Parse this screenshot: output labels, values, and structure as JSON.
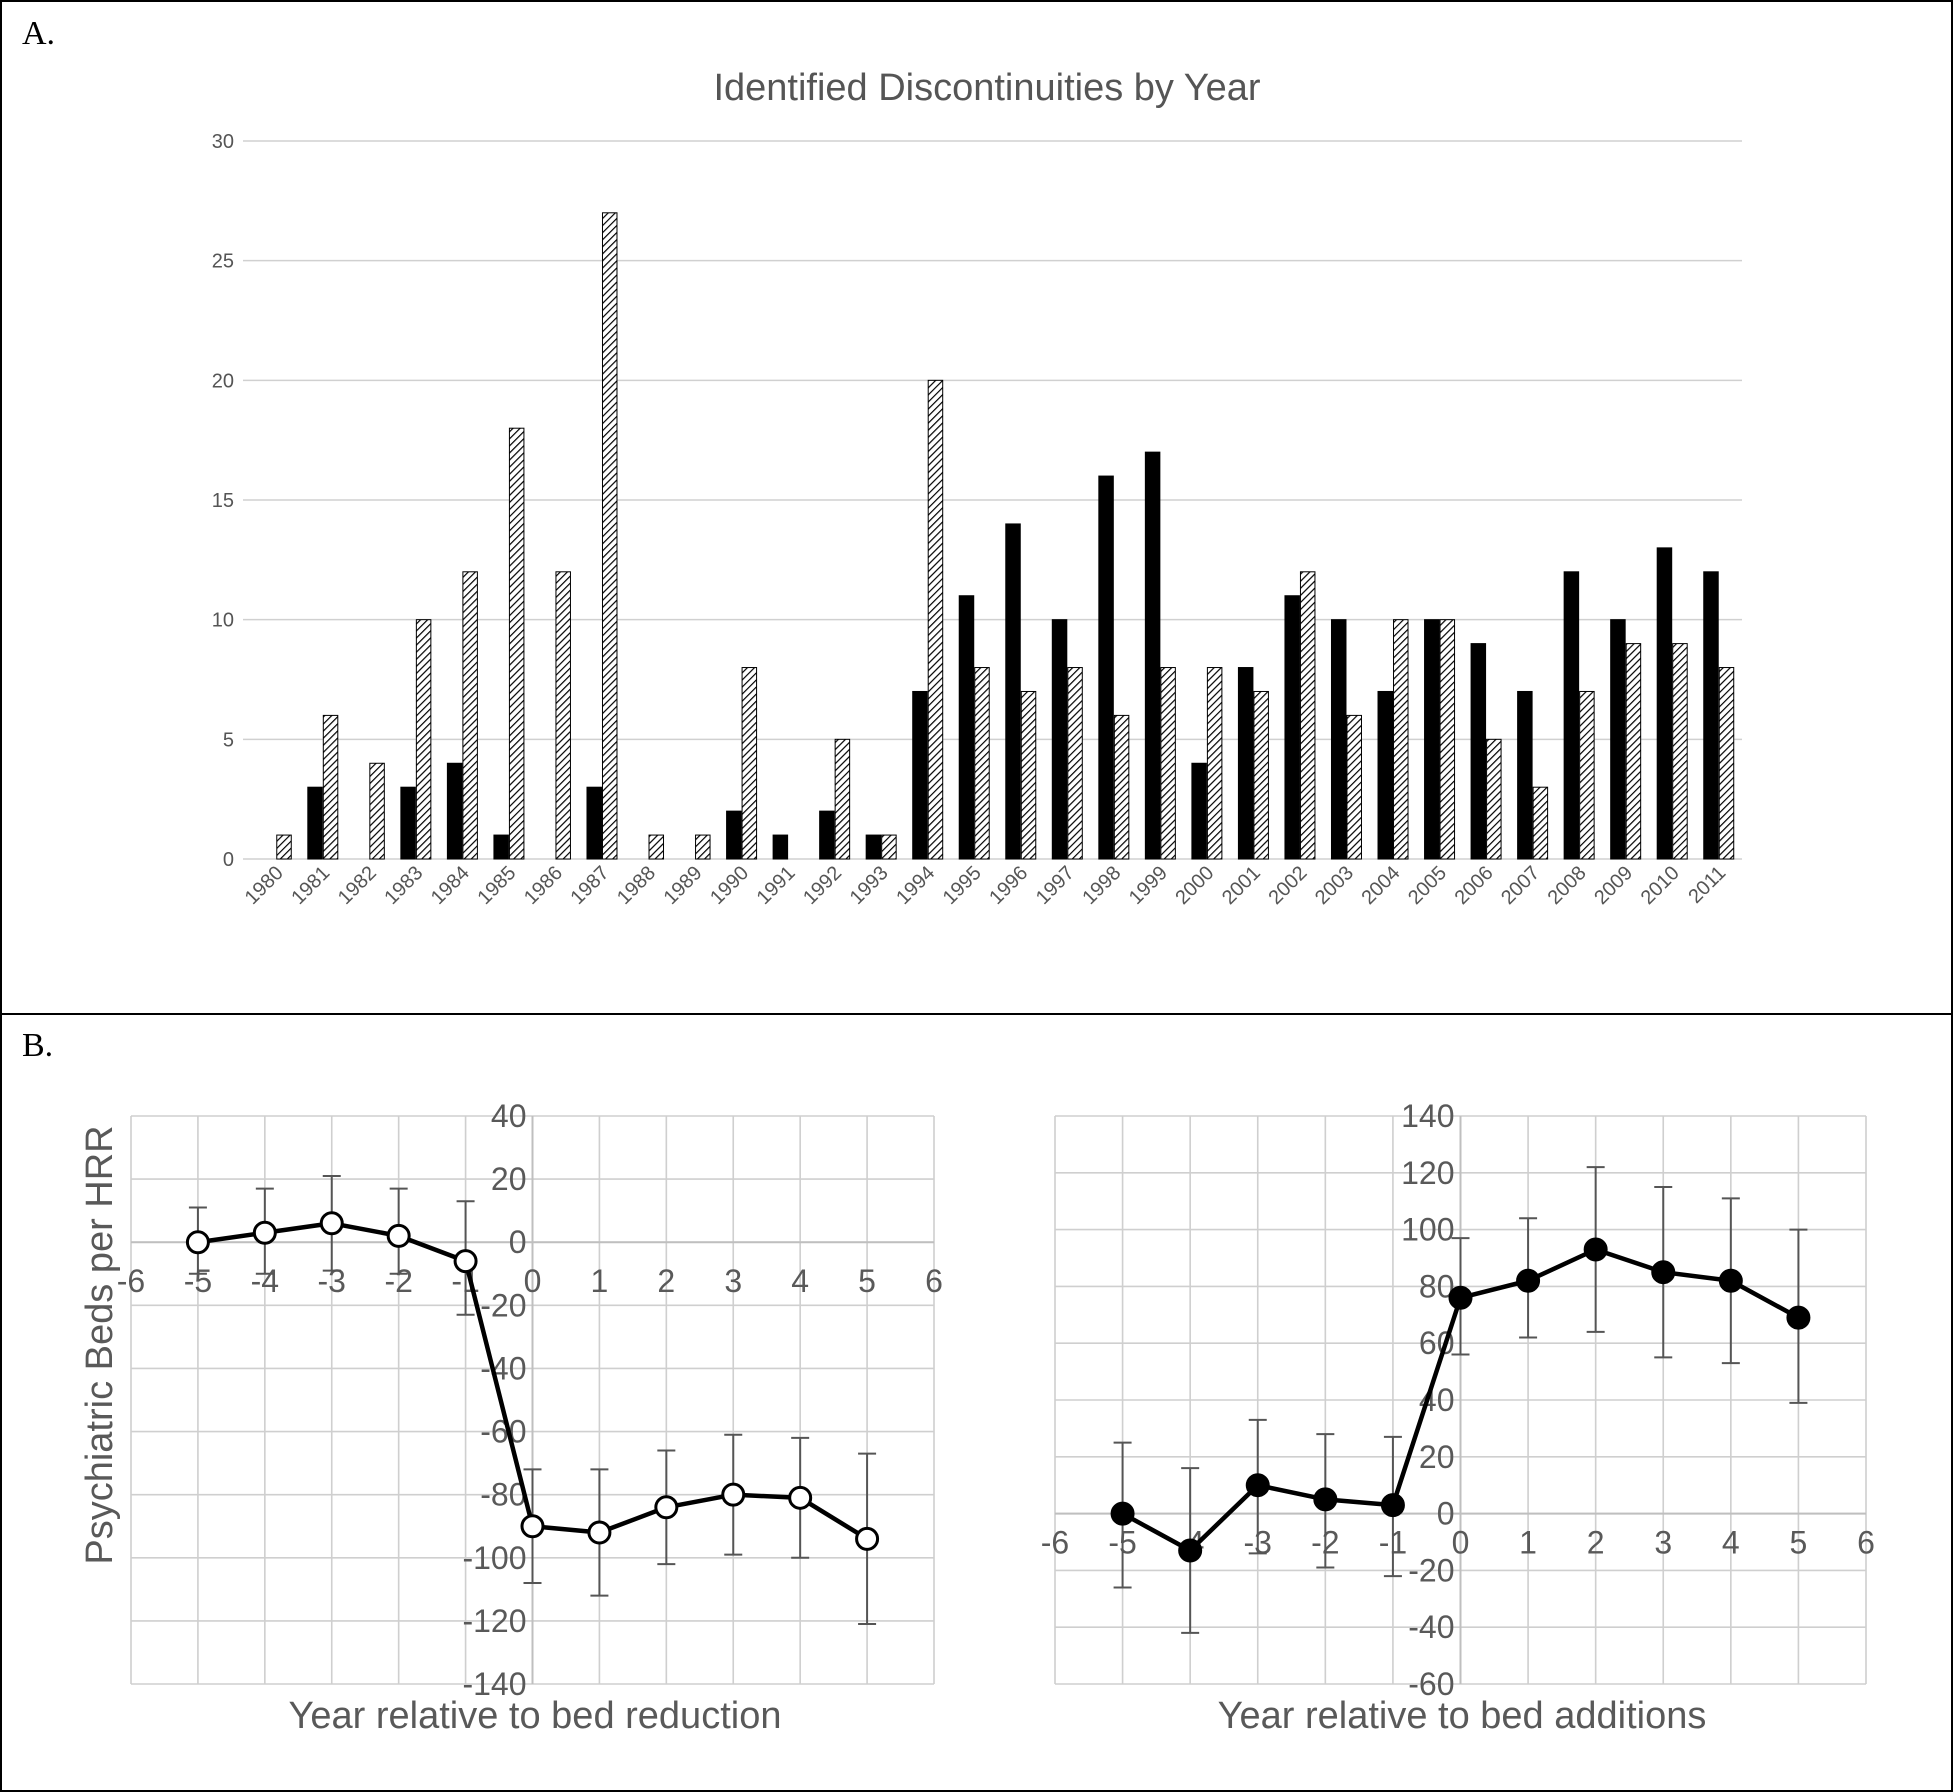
{
  "panel_a_label": "A.",
  "panel_b_label": "B.",
  "chart_data": [
    {
      "type": "bar",
      "title": "Identified Discontinuities by Year",
      "categories": [
        "1980",
        "1981",
        "1982",
        "1983",
        "1984",
        "1985",
        "1986",
        "1987",
        "1988",
        "1989",
        "1990",
        "1991",
        "1992",
        "1993",
        "1994",
        "1995",
        "1996",
        "1997",
        "1998",
        "1999",
        "2000",
        "2001",
        "2002",
        "2003",
        "2004",
        "2005",
        "2006",
        "2007",
        "2008",
        "2009",
        "2010",
        "2011"
      ],
      "series": [
        {
          "values": [
            0,
            3,
            0,
            3,
            4,
            1,
            0,
            3,
            0,
            0,
            2,
            1,
            2,
            1,
            7,
            11,
            14,
            10,
            16,
            17,
            4,
            8,
            11,
            10,
            7,
            10,
            9,
            7,
            12,
            10,
            13,
            12
          ],
          "color": "#000000",
          "fill": "solid"
        },
        {
          "values": [
            1,
            6,
            4,
            10,
            12,
            18,
            12,
            27,
            1,
            1,
            8,
            0,
            5,
            1,
            20,
            8,
            7,
            8,
            6,
            8,
            8,
            7,
            12,
            6,
            10,
            10,
            5,
            3,
            7,
            9,
            9,
            8
          ],
          "color": "#000000",
          "fill": "hatched"
        }
      ],
      "ylim": [
        0,
        30
      ],
      "yticks": [
        0,
        5,
        10,
        15,
        20,
        25,
        30
      ],
      "ytick_labels": [
        "0",
        "5",
        "10",
        "15",
        "20",
        "25",
        "30"
      ],
      "grid": true,
      "legend": false
    },
    {
      "type": "line",
      "title": "",
      "xlabel": "Year relative to bed reduction",
      "ylabel": "Psychiatric Beds per HRR",
      "x": [
        -5,
        -4,
        -3,
        -2,
        -1,
        0,
        1,
        2,
        3,
        4,
        5
      ],
      "y": [
        0,
        3,
        6,
        2,
        -6,
        -90,
        -92,
        -84,
        -80,
        -81,
        -94
      ],
      "err_low": [
        -10,
        -10,
        -9,
        -10,
        -23,
        -108,
        -112,
        -102,
        -99,
        -100,
        -121
      ],
      "err_high": [
        11,
        17,
        21,
        17,
        13,
        -72,
        -72,
        -66,
        -61,
        -62,
        -67
      ],
      "marker": "open-circle",
      "xlim": [
        -6,
        6
      ],
      "xticks": [
        -6,
        -5,
        -4,
        -3,
        -2,
        -1,
        0,
        1,
        2,
        3,
        4,
        5,
        6
      ],
      "ylim": [
        -140,
        40
      ],
      "yticks": [
        -140,
        -120,
        -100,
        -80,
        -60,
        -40,
        -20,
        0,
        20,
        40
      ],
      "grid": true
    },
    {
      "type": "line",
      "title": "",
      "xlabel": "Year relative to bed additions",
      "ylabel": "",
      "x": [
        -5,
        -4,
        -3,
        -2,
        -1,
        0,
        1,
        2,
        3,
        4,
        5
      ],
      "y": [
        0,
        -13,
        10,
        5,
        3,
        76,
        82,
        93,
        85,
        82,
        69
      ],
      "err_low": [
        -26,
        -42,
        -14,
        -19,
        -22,
        56,
        62,
        64,
        55,
        53,
        39
      ],
      "err_high": [
        25,
        16,
        33,
        28,
        27,
        97,
        104,
        122,
        115,
        111,
        100
      ],
      "marker": "filled-circle",
      "xlim": [
        -6,
        6
      ],
      "xticks": [
        -6,
        -5,
        -4,
        -3,
        -2,
        -1,
        0,
        1,
        2,
        3,
        4,
        5,
        6
      ],
      "ylim": [
        -60,
        140
      ],
      "yticks": [
        -60,
        -40,
        -20,
        0,
        20,
        40,
        60,
        80,
        100,
        120,
        140
      ],
      "grid": true
    }
  ]
}
